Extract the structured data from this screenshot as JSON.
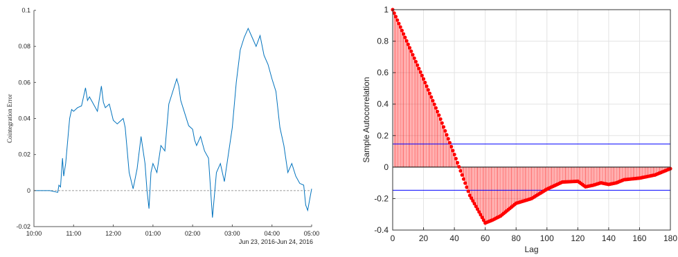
{
  "chart_data": [
    {
      "type": "line",
      "title": "",
      "xlabel": "",
      "ylabel": "Cointegration Error",
      "x_start_label": "10:00",
      "x_tick_labels": [
        "10:00",
        "11:00",
        "12:00",
        "01:00",
        "02:00",
        "03:00",
        "04:00",
        "05:00"
      ],
      "x_date_note": "Jun 23, 2016-Jun 24, 2016",
      "ylim": [
        -0.02,
        0.1
      ],
      "y_ticks": [
        -0.02,
        0,
        0.02,
        0.04,
        0.06,
        0.08,
        0.1
      ],
      "y_tick_labels": [
        "-0.02",
        "0",
        "0.02",
        "0.04",
        "0.06",
        "0.08",
        "0.1"
      ],
      "xlim_hours": [
        0,
        7
      ],
      "zero_line": true,
      "series": [
        {
          "color": "#0072bd",
          "x_hours": [
            0,
            0.2,
            0.4,
            0.6,
            0.63,
            0.67,
            0.72,
            0.75,
            0.8,
            0.9,
            0.95,
            1.0,
            1.1,
            1.2,
            1.3,
            1.35,
            1.4,
            1.5,
            1.6,
            1.7,
            1.75,
            1.8,
            1.9,
            2.0,
            2.1,
            2.15,
            2.2,
            2.25,
            2.3,
            2.4,
            2.5,
            2.6,
            2.7,
            2.8,
            2.85,
            2.9,
            2.95,
            3.0,
            3.1,
            3.2,
            3.3,
            3.4,
            3.5,
            3.6,
            3.65,
            3.7,
            3.8,
            3.9,
            4.0,
            4.05,
            4.1,
            4.2,
            4.3,
            4.4,
            4.5,
            4.6,
            4.7,
            4.8,
            4.9,
            5.0,
            5.1,
            5.2,
            5.3,
            5.4,
            5.5,
            5.6,
            5.7,
            5.8,
            5.9,
            6.0,
            6.1,
            6.2,
            6.3,
            6.4,
            6.5,
            6.6,
            6.7,
            6.8,
            6.85,
            6.9,
            6.95,
            7.0
          ],
          "values": [
            0.0,
            0.0,
            0.0,
            -0.001,
            0.003,
            0.002,
            0.018,
            0.008,
            0.015,
            0.04,
            0.045,
            0.044,
            0.046,
            0.047,
            0.057,
            0.05,
            0.052,
            0.048,
            0.044,
            0.058,
            0.049,
            0.046,
            0.048,
            0.039,
            0.037,
            0.038,
            0.039,
            0.04,
            0.035,
            0.01,
            0.001,
            0.012,
            0.03,
            0.015,
            0.0,
            -0.01,
            0.01,
            0.015,
            0.01,
            0.025,
            0.022,
            0.048,
            0.055,
            0.062,
            0.058,
            0.05,
            0.043,
            0.036,
            0.034,
            0.028,
            0.025,
            0.03,
            0.022,
            0.018,
            -0.015,
            0.01,
            0.015,
            0.005,
            0.02,
            0.035,
            0.06,
            0.078,
            0.085,
            0.09,
            0.085,
            0.08,
            0.086,
            0.075,
            0.07,
            0.062,
            0.055,
            0.035,
            0.025,
            0.01,
            0.015,
            0.008,
            0.004,
            0.003,
            -0.008,
            -0.011,
            -0.005,
            0.001
          ]
        }
      ]
    },
    {
      "type": "stem",
      "title": "",
      "xlabel": "Lag",
      "ylabel": "Sample Autocorrelation",
      "xlim": [
        0,
        180
      ],
      "ylim": [
        -0.4,
        1
      ],
      "x_ticks": [
        0,
        20,
        40,
        60,
        80,
        100,
        120,
        140,
        160,
        180
      ],
      "x_tick_labels": [
        "0",
        "20",
        "40",
        "60",
        "80",
        "100",
        "120",
        "140",
        "160",
        "180"
      ],
      "y_ticks": [
        -0.4,
        -0.2,
        0,
        0.2,
        0.4,
        0.6,
        0.8,
        1
      ],
      "y_tick_labels": [
        "-0.4",
        "-0.2",
        "0",
        "0.2",
        "0.4",
        "0.6",
        "0.8",
        "1"
      ],
      "grid": true,
      "confidence_bounds": [
        0.147,
        -0.147
      ],
      "bound_color": "#0000ff",
      "stem_color": "#ff0000",
      "acf_knots_lag": [
        0,
        10,
        20,
        30,
        40,
        50,
        60,
        65,
        70,
        80,
        90,
        100,
        110,
        120,
        125,
        130,
        135,
        140,
        145,
        150,
        160,
        170,
        180
      ],
      "acf_knots_value": [
        1,
        0.78,
        0.56,
        0.33,
        0.08,
        -0.18,
        -0.355,
        -0.335,
        -0.31,
        -0.23,
        -0.2,
        -0.14,
        -0.095,
        -0.09,
        -0.125,
        -0.115,
        -0.1,
        -0.11,
        -0.1,
        -0.08,
        -0.07,
        -0.05,
        -0.01
      ]
    }
  ]
}
